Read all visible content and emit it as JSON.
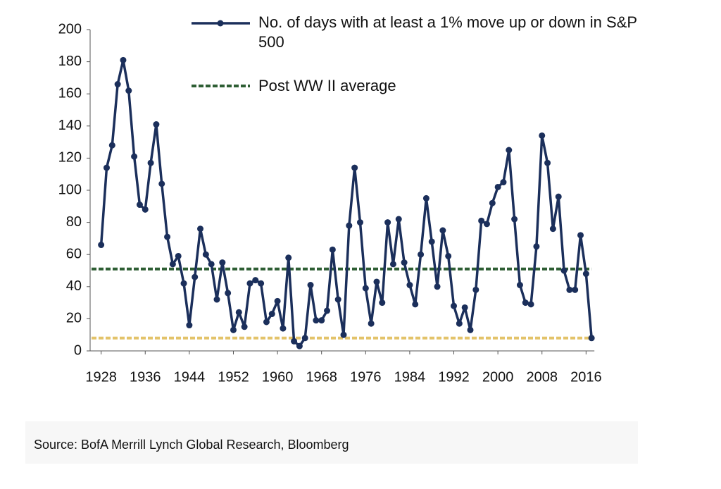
{
  "chart_data": {
    "type": "line",
    "x": [
      1928,
      1929,
      1930,
      1931,
      1932,
      1933,
      1934,
      1935,
      1936,
      1937,
      1938,
      1939,
      1940,
      1941,
      1942,
      1943,
      1944,
      1945,
      1946,
      1947,
      1948,
      1949,
      1950,
      1951,
      1952,
      1953,
      1954,
      1955,
      1956,
      1957,
      1958,
      1959,
      1960,
      1961,
      1962,
      1963,
      1964,
      1965,
      1966,
      1967,
      1968,
      1969,
      1970,
      1971,
      1972,
      1973,
      1974,
      1975,
      1976,
      1977,
      1978,
      1979,
      1980,
      1981,
      1982,
      1983,
      1984,
      1985,
      1986,
      1987,
      1988,
      1989,
      1990,
      1991,
      1992,
      1993,
      1994,
      1995,
      1996,
      1997,
      1998,
      1999,
      2000,
      2001,
      2002,
      2003,
      2004,
      2005,
      2006,
      2007,
      2008,
      2009,
      2010,
      2011,
      2012,
      2013,
      2014,
      2015,
      2016,
      2017
    ],
    "series": [
      {
        "name": "No. of days with at least a 1% move up or down in S&P 500",
        "color": "#1b2f5b",
        "values": [
          66,
          114,
          128,
          166,
          181,
          162,
          121,
          91,
          88,
          117,
          141,
          104,
          71,
          54,
          59,
          42,
          16,
          46,
          76,
          60,
          54,
          32,
          55,
          36,
          13,
          24,
          15,
          42,
          44,
          42,
          18,
          23,
          31,
          14,
          58,
          6,
          3,
          8,
          41,
          19,
          19,
          25,
          63,
          32,
          10,
          78,
          114,
          80,
          39,
          17,
          43,
          30,
          80,
          54,
          82,
          55,
          41,
          29,
          60,
          95,
          68,
          40,
          75,
          59,
          28,
          17,
          27,
          13,
          38,
          81,
          79,
          92,
          102,
          105,
          125,
          82,
          41,
          30,
          29,
          65,
          134,
          117,
          76,
          96,
          50,
          38,
          38,
          72,
          48,
          8
        ]
      }
    ],
    "reference_lines": [
      {
        "name": "Post WW II average",
        "value": 51,
        "color": "#2e5e34"
      },
      {
        "value": 8,
        "color": "#e3c36a"
      }
    ],
    "xlim": [
      1926,
      2018
    ],
    "xticks": [
      1928,
      1936,
      1944,
      1952,
      1960,
      1968,
      1976,
      1984,
      1992,
      2000,
      2008,
      2016
    ],
    "ylim": [
      0,
      200
    ],
    "yticks": [
      0,
      20,
      40,
      60,
      80,
      100,
      120,
      140,
      160,
      180,
      200
    ],
    "grid": false,
    "source": "Source: BofA Merrill Lynch Global Research, Bloomberg"
  }
}
